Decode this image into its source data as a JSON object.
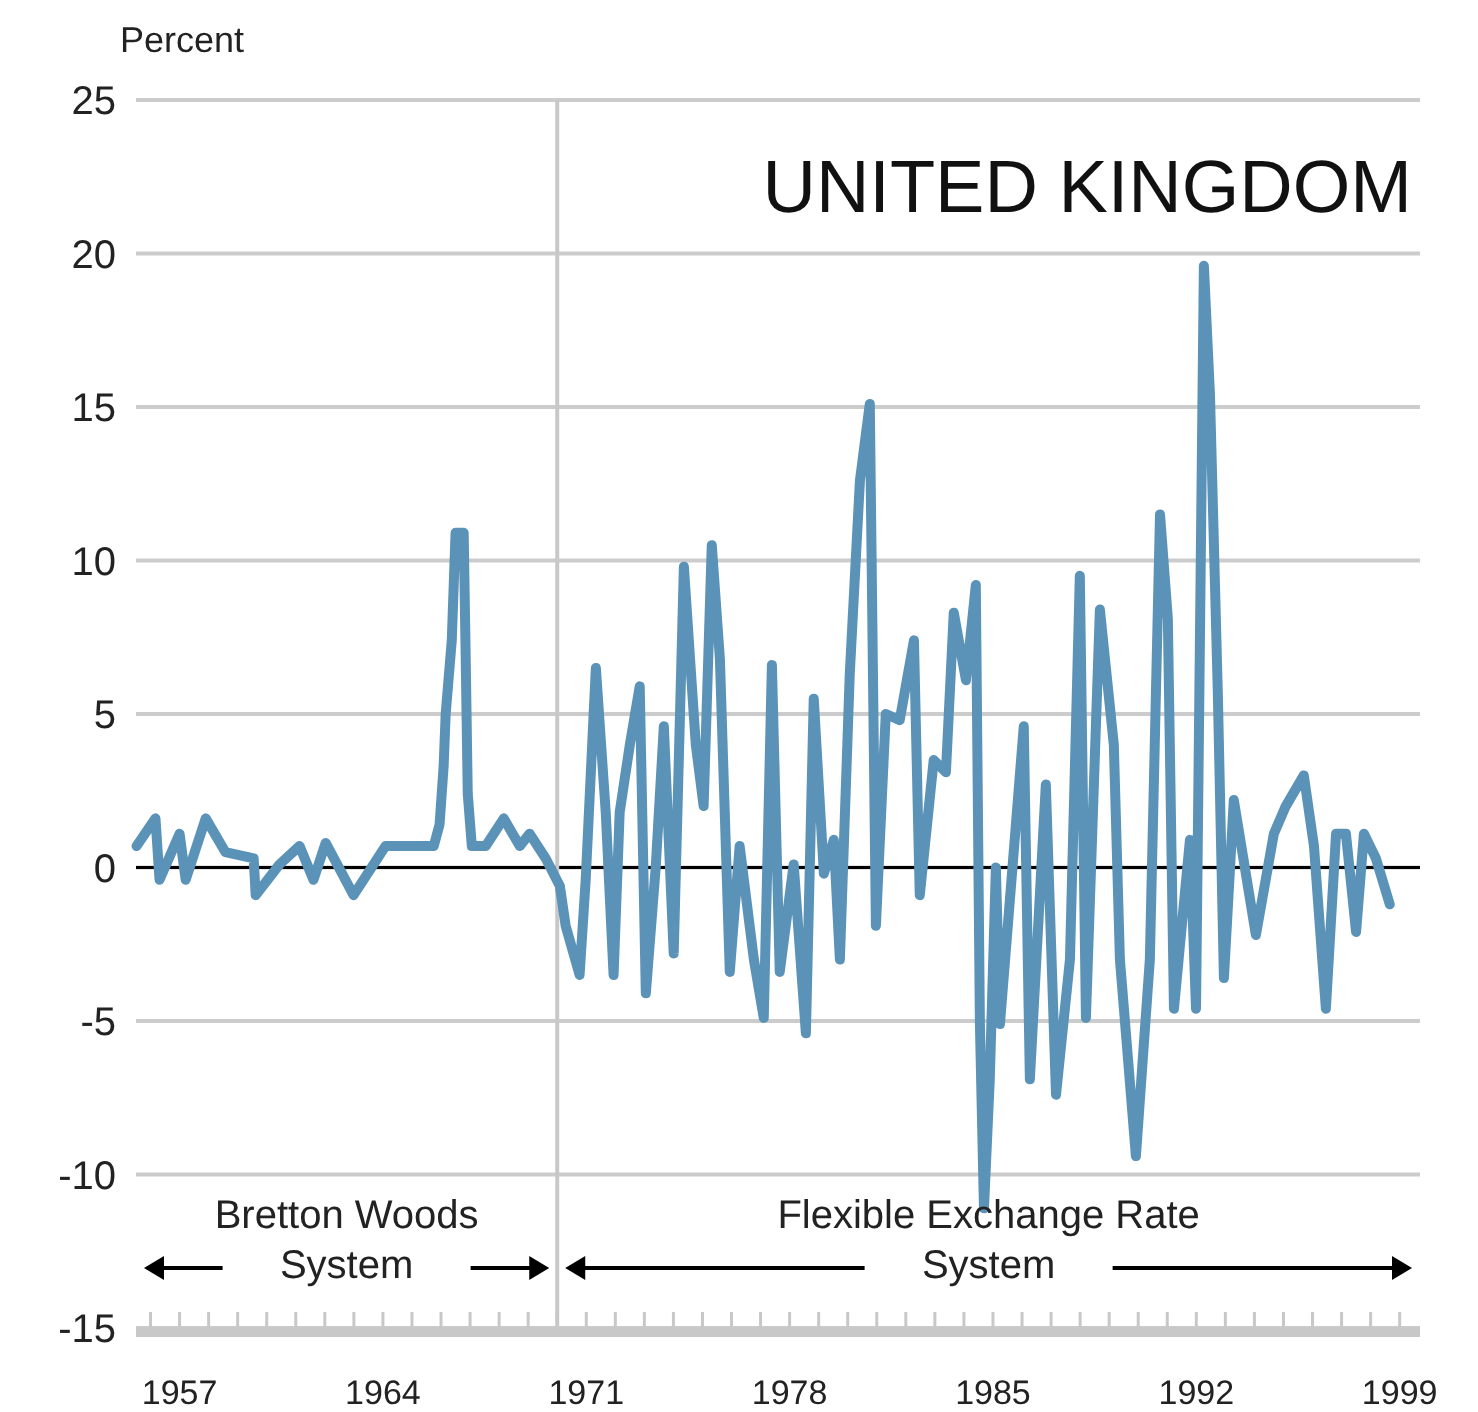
{
  "chart_data": {
    "type": "line",
    "title": "UNITED KINGDOM",
    "ylabel": "Percent",
    "annotations": [
      "Bretton Woods\nSystem",
      "Flexible Exchange Rate\nSystem"
    ],
    "xlim": [
      1955.5,
      1999.7
    ],
    "xticks": [
      {
        "value": 1956,
        "label": null
      },
      1957,
      {
        "value": 1958,
        "label": null
      },
      {
        "value": 1959,
        "label": null
      },
      {
        "value": 1960,
        "label": null
      },
      {
        "value": 1961,
        "label": null
      },
      {
        "value": 1962,
        "label": null
      },
      {
        "value": 1963,
        "label": null
      },
      1964,
      {
        "value": 1965,
        "label": null
      },
      {
        "value": 1966,
        "label": null
      },
      {
        "value": 1967,
        "label": null
      },
      {
        "value": 1968,
        "label": null
      },
      {
        "value": 1969,
        "label": null
      },
      {
        "value": 1970,
        "label": null
      },
      1971,
      {
        "value": 1972,
        "label": null
      },
      {
        "value": 1973,
        "label": null
      },
      {
        "value": 1974,
        "label": null
      },
      {
        "value": 1975,
        "label": null
      },
      {
        "value": 1976,
        "label": null
      },
      {
        "value": 1977,
        "label": null
      },
      1978,
      {
        "value": 1979,
        "label": null
      },
      {
        "value": 1980,
        "label": null
      },
      {
        "value": 1981,
        "label": null
      },
      {
        "value": 1982,
        "label": null
      },
      {
        "value": 1983,
        "label": null
      },
      {
        "value": 1984,
        "label": null
      },
      1985,
      {
        "value": 1986,
        "label": null
      },
      {
        "value": 1987,
        "label": null
      },
      {
        "value": 1988,
        "label": null
      },
      {
        "value": 1989,
        "label": null
      },
      {
        "value": 1990,
        "label": null
      },
      {
        "value": 1991,
        "label": null
      },
      1992,
      {
        "value": 1993,
        "label": null
      },
      {
        "value": 1994,
        "label": null
      },
      {
        "value": 1995,
        "label": null
      },
      {
        "value": 1996,
        "label": null
      },
      {
        "value": 1997,
        "label": null
      },
      {
        "value": 1998,
        "label": null
      },
      1999
    ],
    "ylim": [
      -15,
      25
    ],
    "yticks": [
      -15,
      -10,
      -5,
      0,
      5,
      10,
      15,
      20,
      25
    ],
    "grid": "y",
    "ref_lines": [
      {
        "axis": "y",
        "value": 0,
        "color": "#000000"
      },
      {
        "axis": "x",
        "value": 1970,
        "color": "#c8c8c8"
      }
    ],
    "series": [
      {
        "color": "#5b93b8",
        "x": [
          1955.52,
          1956.17,
          1956.31,
          1957.0,
          1957.21,
          1957.9,
          1958.58,
          1959.55,
          1959.62,
          1960.44,
          1961.13,
          1961.61,
          1962.03,
          1962.99,
          1964.09,
          1965.75,
          1965.95,
          1966.09,
          1966.16,
          1966.37,
          1966.5,
          1966.78,
          1966.85,
          1966.92,
          1967.06,
          1967.54,
          1968.16,
          1968.71,
          1969.05,
          1969.6,
          1970.09,
          1970.29,
          1970.77,
          1970.98,
          1971.33,
          1971.67,
          1971.94,
          1972.15,
          1972.5,
          1972.84,
          1973.05,
          1973.39,
          1973.67,
          1974.01,
          1974.36,
          1974.77,
          1975.04,
          1975.32,
          1975.6,
          1975.94,
          1976.28,
          1976.77,
          1977.11,
          1977.39,
          1977.66,
          1978.14,
          1978.56,
          1978.83,
          1979.18,
          1979.52,
          1979.73,
          1980.07,
          1980.42,
          1980.76,
          1980.97,
          1981.31,
          1981.79,
          1982.28,
          1982.48,
          1982.96,
          1983.38,
          1983.65,
          1984.07,
          1984.41,
          1984.55,
          1984.69,
          1984.89,
          1985.1,
          1985.24,
          1986.06,
          1986.27,
          1986.82,
          1987.17,
          1987.65,
          1987.99,
          1988.2,
          1988.68,
          1989.16,
          1989.37,
          1989.92,
          1990.4,
          1990.75,
          1991.02,
          1991.23,
          1991.78,
          1991.99,
          1992.26,
          1992.47,
          1992.74,
          1992.95,
          1993.29,
          1994.05,
          1994.67,
          1995.08,
          1995.7,
          1996.05,
          1996.46,
          1996.81,
          1997.15,
          1997.5,
          1997.77,
          1998.18,
          1998.66
        ],
        "values": [
          0.7,
          1.6,
          -0.4,
          1.1,
          -0.4,
          1.6,
          0.5,
          0.3,
          -0.9,
          0.1,
          0.7,
          -0.4,
          0.8,
          -0.9,
          0.7,
          0.7,
          1.4,
          3.3,
          5.0,
          7.4,
          10.9,
          10.9,
          6.8,
          2.4,
          0.7,
          0.7,
          1.6,
          0.7,
          1.1,
          0.3,
          -0.6,
          -1.9,
          -3.5,
          -0.4,
          6.5,
          1.8,
          -3.5,
          1.8,
          4.0,
          5.9,
          -4.1,
          0,
          4.6,
          -2.8,
          9.8,
          4.0,
          2.0,
          10.5,
          6.8,
          -3.4,
          0.7,
          -3.0,
          -4.9,
          6.6,
          -3.4,
          0.1,
          -5.4,
          5.5,
          -0.2,
          0.9,
          -3.0,
          6.3,
          12.6,
          15.1,
          -1.9,
          5.0,
          4.8,
          7.4,
          -0.9,
          3.5,
          3.1,
          8.3,
          6.1,
          9.2,
          -5.1,
          -11.1,
          -6.9,
          0,
          -5.1,
          4.6,
          -6.9,
          2.7,
          -7.4,
          -3.0,
          9.5,
          -4.9,
          8.4,
          4.0,
          -3.0,
          -9.4,
          -3.0,
          11.5,
          8.1,
          -4.6,
          0.9,
          -4.6,
          19.6,
          15.4,
          5.7,
          -3.6,
          2.2,
          -2.2,
          1.1,
          2.0,
          3.0,
          0.7,
          -4.6,
          1.1,
          1.1,
          -2.1,
          1.1,
          0.3,
          -1.2
        ]
      }
    ]
  }
}
